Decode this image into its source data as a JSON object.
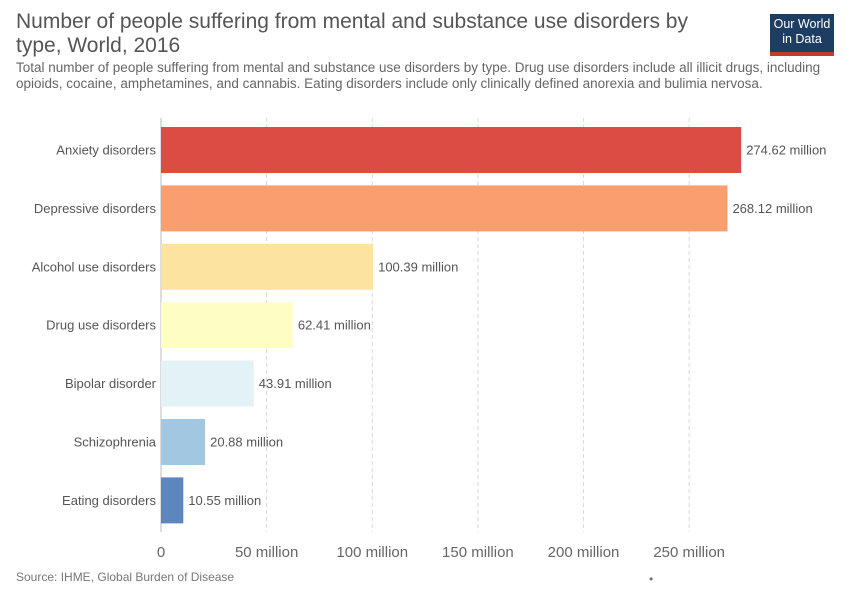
{
  "header": {
    "title": "Number of people suffering from mental and substance use disorders by type, World, 2016",
    "subtitle": "Total number of people suffering from mental and substance use disorders by type. Drug use disorders include all illicit drugs, including opioids, cocaine, amphetamines, and cannabis. Eating disorders include only clinically defined anorexia and bulimia nervosa."
  },
  "logo": {
    "line1": "Our World",
    "line2": "in Data",
    "bg_color": "#1d3d63",
    "accent_color": "#c43a2b"
  },
  "footer": {
    "source": "Source: IHME, Global Burden of Disease",
    "dot": "•"
  },
  "chart_data": {
    "type": "bar",
    "orientation": "horizontal",
    "categories": [
      "Anxiety disorders",
      "Depressive disorders",
      "Alcohol use disorders",
      "Drug use disorders",
      "Bipolar disorder",
      "Schizophrenia",
      "Eating disorders"
    ],
    "values": [
      274.62,
      268.12,
      100.39,
      62.41,
      43.91,
      20.88,
      10.55
    ],
    "value_labels": [
      "274.62 million",
      "268.12 million",
      "100.39 million",
      "62.41 million",
      "43.91 million",
      "20.88 million",
      "10.55 million"
    ],
    "colors": [
      "#dc4c44",
      "#f99e6e",
      "#fde3a0",
      "#fdfdc4",
      "#e3f2f7",
      "#a1c8e0",
      "#5d87bc"
    ],
    "x_ticks": [
      0,
      50,
      100,
      150,
      200,
      250
    ],
    "x_tick_labels": [
      "0",
      "50 million",
      "100 million",
      "150 million",
      "200 million",
      "250 million"
    ],
    "xlim": [
      0,
      275
    ],
    "grid": true
  }
}
